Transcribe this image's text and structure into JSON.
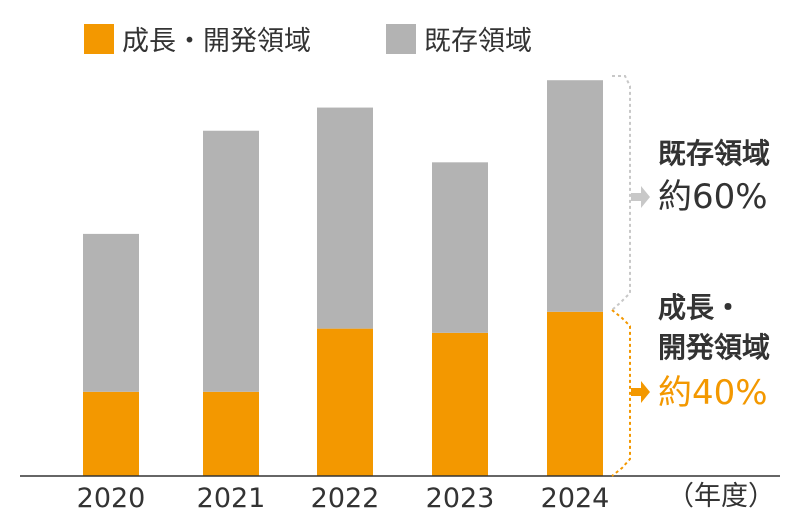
{
  "chart_data": {
    "type": "bar",
    "stacked": true,
    "categories": [
      "2020",
      "2021",
      "2022",
      "2023",
      "2024"
    ],
    "series": [
      {
        "name": "成長・開発領域",
        "color": "#f39800",
        "values": [
          4.0,
          4.0,
          7.0,
          6.8,
          7.8
        ]
      },
      {
        "name": "既存領域",
        "color": "#b3b3b3",
        "values": [
          7.5,
          12.4,
          10.5,
          8.1,
          11.0
        ]
      }
    ],
    "ylim": [
      0,
      19
    ],
    "x_unit_label": "（年度）",
    "legend_position": "top-left",
    "annotations": [
      {
        "series": "既存領域",
        "label": "既存領域",
        "value_text": "約60%",
        "color": "#333333",
        "arrow_color": "#c8c8c8"
      },
      {
        "series": "成長・開発領域",
        "label_lines": [
          "成長・",
          "開発領域"
        ],
        "value_text": "約40%",
        "color": "#f39800",
        "arrow_color": "#f39800"
      }
    ]
  }
}
